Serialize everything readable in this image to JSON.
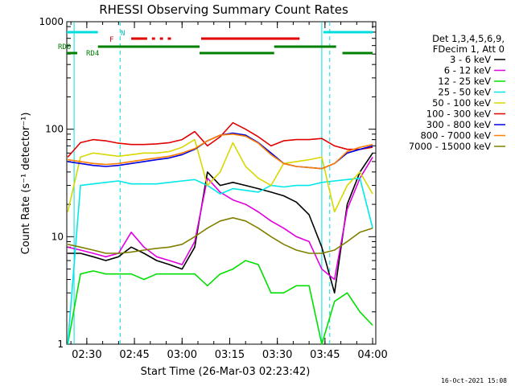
{
  "chart_data": {
    "type": "line",
    "title": "RHESSI Observing Summary Count Rates",
    "xlabel": "Start Time (26-Mar-03 02:23:42)",
    "ylabel": "Count Rate (s⁻¹ detector⁻¹)",
    "y_scale": "log",
    "ylim": [
      1,
      1000
    ],
    "xlim": [
      "02:23:42",
      "04:01:00"
    ],
    "x_ticks": [
      "02:30",
      "02:45",
      "03:00",
      "03:15",
      "03:30",
      "03:45",
      "04:00"
    ],
    "y_ticks": [
      "1",
      "10",
      "100",
      "1000"
    ],
    "legend_header": [
      "Det 1,3,4,5,6,9,",
      "FDecim 1, Att 0"
    ],
    "legend_position": "right",
    "footer": "16-Oct-2021 15:08",
    "flag_labels": {
      "n": "N",
      "f": "F",
      "rd0": "RD0",
      "rd4": "RD4"
    },
    "series": [
      {
        "name": "3 - 6 keV",
        "color": "#000000",
        "x": [
          "02:24",
          "02:28",
          "02:32",
          "02:36",
          "02:40",
          "02:44",
          "02:48",
          "02:52",
          "02:56",
          "03:00",
          "03:04",
          "03:08",
          "03:12",
          "03:16",
          "03:20",
          "03:24",
          "03:28",
          "03:32",
          "03:36",
          "03:40",
          "03:44",
          "03:48",
          "03:52",
          "03:56",
          "04:00"
        ],
        "values": [
          7,
          7,
          6.5,
          6,
          6.5,
          8,
          7,
          6,
          5.5,
          5,
          8,
          40,
          30,
          32,
          30,
          28,
          26,
          24,
          21,
          16,
          8,
          3,
          20,
          40,
          60
        ]
      },
      {
        "name": "6 - 12 keV",
        "color": "#e000e0",
        "x": [
          "02:24",
          "02:28",
          "02:32",
          "02:36",
          "02:40",
          "02:44",
          "02:48",
          "02:52",
          "02:56",
          "03:00",
          "03:04",
          "03:08",
          "03:12",
          "03:16",
          "03:20",
          "03:24",
          "03:28",
          "03:32",
          "03:36",
          "03:40",
          "03:44",
          "03:48",
          "03:52",
          "03:56",
          "04:00"
        ],
        "values": [
          8,
          7.5,
          7,
          6.5,
          7,
          11,
          8,
          6.5,
          6,
          5.5,
          9,
          35,
          26,
          22,
          20,
          17,
          14,
          12,
          10,
          9,
          5,
          4,
          18,
          35,
          55
        ]
      },
      {
        "name": "12 - 25 keV",
        "color": "#00e000",
        "x": [
          "02:24",
          "02:28",
          "02:32",
          "02:36",
          "02:40",
          "02:44",
          "02:48",
          "02:52",
          "02:56",
          "03:00",
          "03:04",
          "03:08",
          "03:12",
          "03:16",
          "03:20",
          "03:24",
          "03:28",
          "03:32",
          "03:36",
          "03:40",
          "03:44",
          "03:48",
          "03:52",
          "03:56",
          "04:00"
        ],
        "values": [
          1,
          4.5,
          4.8,
          4.5,
          4.5,
          4.5,
          4,
          4.5,
          4.5,
          4.5,
          4.5,
          3.5,
          4.5,
          5,
          6,
          5.5,
          3,
          3,
          3.5,
          3.5,
          1,
          2.5,
          3,
          2,
          1.5
        ]
      },
      {
        "name": "25 - 50 keV",
        "color": "#00e8e8",
        "x": [
          "02:24",
          "02:28",
          "02:32",
          "02:36",
          "02:40",
          "02:44",
          "02:48",
          "02:52",
          "02:56",
          "03:00",
          "03:04",
          "03:08",
          "03:12",
          "03:16",
          "03:20",
          "03:24",
          "03:28",
          "03:32",
          "03:36",
          "03:40",
          "03:44",
          "03:48",
          "03:52",
          "03:56",
          "04:00"
        ],
        "values": [
          1,
          30,
          31,
          32,
          33,
          31,
          31,
          31,
          32,
          33,
          34,
          30,
          25,
          28,
          27,
          26,
          30,
          29,
          30,
          30,
          32,
          33,
          34,
          35,
          12
        ]
      },
      {
        "name": "50 - 100 keV",
        "color": "#d8d800",
        "x": [
          "02:24",
          "02:28",
          "02:32",
          "02:36",
          "02:40",
          "02:44",
          "02:48",
          "02:52",
          "02:56",
          "03:00",
          "03:04",
          "03:08",
          "03:12",
          "03:16",
          "03:20",
          "03:24",
          "03:28",
          "03:32",
          "03:36",
          "03:40",
          "03:44",
          "03:48",
          "03:52",
          "03:56",
          "04:00"
        ],
        "values": [
          17,
          55,
          60,
          58,
          56,
          58,
          60,
          60,
          62,
          68,
          80,
          30,
          40,
          75,
          45,
          35,
          30,
          48,
          50,
          52,
          55,
          17,
          30,
          40,
          25
        ]
      },
      {
        "name": "100 - 300 keV",
        "color": "#e00000",
        "x": [
          "02:24",
          "02:28",
          "02:32",
          "02:36",
          "02:40",
          "02:44",
          "02:48",
          "02:52",
          "02:56",
          "03:00",
          "03:04",
          "03:08",
          "03:12",
          "03:16",
          "03:20",
          "03:24",
          "03:28",
          "03:32",
          "03:36",
          "03:40",
          "03:44",
          "03:48",
          "03:52",
          "03:56",
          "04:00"
        ],
        "values": [
          55,
          75,
          80,
          78,
          74,
          72,
          72,
          73,
          75,
          80,
          95,
          70,
          85,
          115,
          100,
          85,
          70,
          78,
          80,
          80,
          82,
          70,
          65,
          65,
          68
        ]
      },
      {
        "name": "300 - 800 keV",
        "color": "#0000e0",
        "x": [
          "02:24",
          "02:28",
          "02:32",
          "02:36",
          "02:40",
          "02:44",
          "02:48",
          "02:52",
          "02:56",
          "03:00",
          "03:04",
          "03:08",
          "03:12",
          "03:16",
          "03:20",
          "03:24",
          "03:28",
          "03:32",
          "03:36",
          "03:40",
          "03:44",
          "03:48",
          "03:52",
          "03:56",
          "04:00"
        ],
        "values": [
          50,
          48,
          46,
          45,
          46,
          48,
          50,
          52,
          54,
          58,
          65,
          78,
          88,
          92,
          88,
          75,
          60,
          48,
          45,
          44,
          43,
          48,
          60,
          65,
          70
        ]
      },
      {
        "name": "800 - 7000 keV",
        "color": "#ff8000",
        "x": [
          "02:24",
          "02:28",
          "02:32",
          "02:36",
          "02:40",
          "02:44",
          "02:48",
          "02:52",
          "02:56",
          "03:00",
          "03:04",
          "03:08",
          "03:12",
          "03:16",
          "03:20",
          "03:24",
          "03:28",
          "03:32",
          "03:36",
          "03:40",
          "03:44",
          "03:48",
          "03:52",
          "03:56",
          "04:00"
        ],
        "values": [
          52,
          50,
          48,
          47,
          48,
          50,
          52,
          54,
          56,
          60,
          66,
          78,
          88,
          90,
          86,
          74,
          58,
          48,
          45,
          44,
          43,
          48,
          62,
          68,
          72
        ]
      },
      {
        "name": "7000 - 15000 keV",
        "color": "#808000",
        "x": [
          "02:24",
          "02:28",
          "02:32",
          "02:36",
          "02:40",
          "02:44",
          "02:48",
          "02:52",
          "02:56",
          "03:00",
          "03:04",
          "03:08",
          "03:12",
          "03:16",
          "03:20",
          "03:24",
          "03:28",
          "03:32",
          "03:36",
          "03:40",
          "03:44",
          "03:48",
          "03:52",
          "03:56",
          "04:00"
        ],
        "values": [
          8.5,
          8,
          7.5,
          7,
          7,
          7.2,
          7.5,
          7.8,
          8,
          8.5,
          10,
          12,
          14,
          15,
          14,
          12,
          10,
          8.5,
          7.5,
          7,
          7,
          7.5,
          9,
          11,
          12
        ]
      }
    ],
    "flags": {
      "n_segments": [
        [
          "02:23:42",
          "02:33:30"
        ],
        [
          "03:44:30",
          "04:00:00"
        ]
      ],
      "f_segments": [
        [
          "02:44:00",
          "02:49:00"
        ],
        [
          "02:50:30",
          "02:51:30"
        ],
        [
          "02:53:00",
          "02:54:00"
        ],
        [
          "02:55:30",
          "02:56:30"
        ],
        [
          "03:06:00",
          "03:37:00"
        ]
      ],
      "rd0_segments": [
        [
          "02:33:30",
          "03:05:30"
        ],
        [
          "03:29:00",
          "03:48:30"
        ]
      ],
      "rd4_segments": [
        [
          "02:23:42",
          "02:27:00"
        ],
        [
          "03:05:30",
          "03:29:00"
        ],
        [
          "03:50:30",
          "04:00:00"
        ]
      ],
      "vlines_solid": [
        "02:26:00",
        "03:44:00"
      ],
      "vlines_dashed": [
        "02:40:30",
        "03:46:30"
      ]
    }
  }
}
